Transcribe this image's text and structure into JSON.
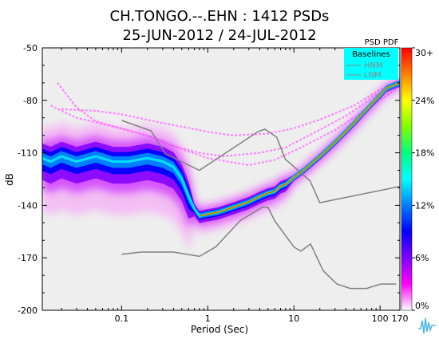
{
  "chart_data": {
    "type": "heatmap",
    "title_line1": "CH.TONGO.--.EHN : 1412 PSDs",
    "title_line2": "25-JUN-2012 / 24-JUL-2012",
    "xlabel": "Period (Sec)",
    "ylabel": "dB",
    "x_scale": "log",
    "xlim": [
      0.012,
      170
    ],
    "ylim": [
      -200,
      -50
    ],
    "x_ticks": [
      {
        "value": 0.1,
        "label": "0.1"
      },
      {
        "value": 1,
        "label": "1"
      },
      {
        "value": 10,
        "label": "10"
      },
      {
        "value": 100,
        "label": "100"
      },
      {
        "value": 170,
        "label": "170"
      }
    ],
    "y_ticks": [
      {
        "value": -50,
        "label": "-50"
      },
      {
        "value": -80,
        "label": "-80"
      },
      {
        "value": -110,
        "label": "-110"
      },
      {
        "value": -140,
        "label": "-140"
      },
      {
        "value": -170,
        "label": "-170"
      },
      {
        "value": -200,
        "label": "-200"
      }
    ],
    "colorbar": {
      "title": "PSD PDF",
      "ticks": [
        "30+",
        "24%",
        "18%",
        "12%",
        "6%",
        "0%"
      ],
      "colors": [
        "#ff0000",
        "#ff7f00",
        "#ffff00",
        "#7fff00",
        "#00ff7f",
        "#00ffff",
        "#007fff",
        "#0000ff",
        "#7f00ff",
        "#ff00ff",
        "#ffffff"
      ]
    },
    "legend": {
      "title": "Baselines",
      "entries": [
        "HNM",
        "LNM"
      ],
      "background": "#00ffff",
      "placement": "top-right"
    },
    "mode_curve": {
      "name": "mode",
      "x": [
        0.012,
        0.015,
        0.02,
        0.03,
        0.05,
        0.08,
        0.12,
        0.2,
        0.3,
        0.4,
        0.5,
        0.6,
        0.7,
        0.8,
        1.0,
        1.3,
        2,
        3,
        4,
        5,
        6,
        7,
        8,
        10,
        13,
        20,
        30,
        50,
        80,
        120,
        170
      ],
      "y": [
        -113,
        -115,
        -112,
        -115,
        -112,
        -115,
        -115,
        -113,
        -115,
        -118,
        -125,
        -135,
        -142,
        -146,
        -145,
        -144,
        -141,
        -138,
        -135,
        -133,
        -132,
        -129,
        -128,
        -124,
        -120,
        -112,
        -104,
        -93,
        -82,
        -73,
        -70
      ]
    },
    "nhnm": {
      "name": "HNM",
      "x": [
        0.1,
        0.22,
        0.32,
        0.8,
        3.8,
        4.6,
        6.3,
        7.9,
        15.4,
        20,
        354.8
      ],
      "y": [
        -91.5,
        -97.4,
        -110.5,
        -120,
        -98,
        -96.5,
        -101,
        -113.5,
        -126,
        -138.5,
        -126
      ]
    },
    "nlnm": {
      "name": "LNM",
      "x": [
        0.1,
        0.17,
        0.4,
        0.8,
        1.24,
        2.4,
        4.3,
        5,
        6,
        10,
        12,
        15.6,
        21.9,
        31.6,
        45,
        70,
        101,
        154
      ],
      "y": [
        -168,
        -166.7,
        -166.7,
        -169.2,
        -163.7,
        -148.6,
        -141.1,
        -141.1,
        -149,
        -163.8,
        -166.2,
        -162.1,
        -177.5,
        -185,
        -187.5,
        -187.5,
        -185,
        -185
      ]
    },
    "noise_curves": [
      {
        "x": [
          0.02,
          0.05,
          0.1,
          0.3,
          0.5,
          1,
          2,
          5,
          10,
          20,
          50,
          100,
          170
        ],
        "y": [
          -85,
          -86,
          -88,
          -93,
          -95,
          -98,
          -100,
          -99,
          -96,
          -91,
          -83,
          -74,
          -68
        ]
      },
      {
        "x": [
          0.015,
          0.03,
          0.08,
          0.2,
          0.4,
          0.8,
          1.5,
          4,
          8,
          15,
          40,
          90,
          170
        ],
        "y": [
          -83,
          -90,
          -95,
          -100,
          -106,
          -110,
          -112,
          -110,
          -107,
          -100,
          -89,
          -77,
          -70
        ]
      },
      {
        "x": [
          0.018,
          0.03,
          0.05,
          0.1,
          0.25,
          0.5,
          1,
          3,
          6,
          12,
          30,
          70,
          170
        ],
        "y": [
          -70,
          -84,
          -92,
          -96,
          -102,
          -108,
          -113,
          -117,
          -114,
          -107,
          -97,
          -85,
          -72
        ]
      }
    ]
  }
}
